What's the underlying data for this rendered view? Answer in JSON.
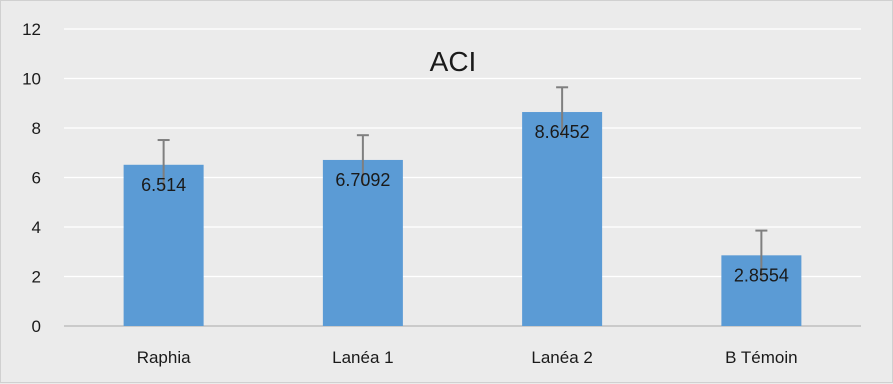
{
  "chart_data": {
    "type": "bar",
    "title": "ACI",
    "xlabel": "",
    "ylabel": "",
    "categories": [
      "Raphia",
      "Lanéa 1",
      "Lanéa 2",
      "B Témoin"
    ],
    "values": [
      6.514,
      6.7092,
      8.6452,
      2.8554
    ],
    "data_labels": [
      "6.514",
      "6.7092",
      "8.6452",
      "2.8554"
    ],
    "error": [
      1.0,
      1.0,
      1.0,
      1.0
    ],
    "ylim": [
      0,
      12
    ],
    "yticks": [
      "0",
      "2",
      "4",
      "6",
      "8",
      "10",
      "12"
    ],
    "grid": true,
    "legend": "none",
    "colors": {
      "bar": "#5b9bd5",
      "error_bar": "#7f7f7f",
      "grid": "#ffffff",
      "axis": "#bfbfbf",
      "background": "#ebebeb"
    }
  }
}
